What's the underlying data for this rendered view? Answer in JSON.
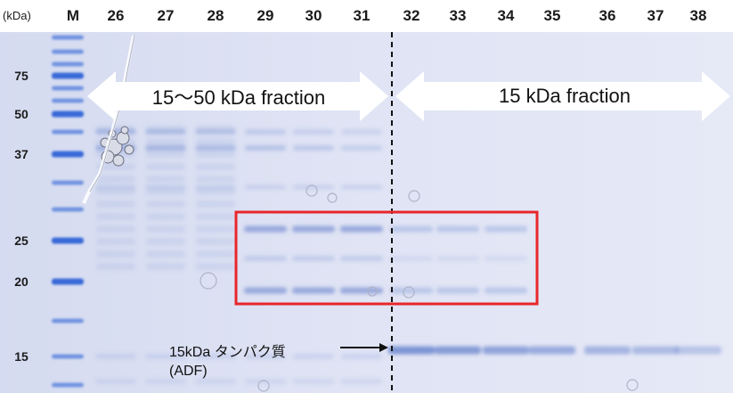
{
  "unit_label": "(kDa)",
  "lanes": [
    "M",
    "26",
    "27",
    "28",
    "29",
    "30",
    "31",
    "32",
    "33",
    "34",
    "35",
    "36",
    "37",
    "38"
  ],
  "markers": [
    {
      "label": "75",
      "kda": 75
    },
    {
      "label": "50",
      "kda": 50
    },
    {
      "label": "37",
      "kda": 37
    },
    {
      "label": "25",
      "kda": 25
    },
    {
      "label": "20",
      "kda": 20
    },
    {
      "label": "15",
      "kda": 15
    }
  ],
  "arrows": {
    "left_label": "15〜50 kDa fraction",
    "right_label": "15 kDa fraction"
  },
  "annotation": {
    "line1": "15kDa タンパク質",
    "line2": "(ADF)"
  },
  "colors": {
    "gel_background": "#e2e6f5",
    "band": "#5b79c9",
    "marker_band": "#2f63d6",
    "highlight_box": "#e8262a",
    "divider": "#111111"
  }
}
